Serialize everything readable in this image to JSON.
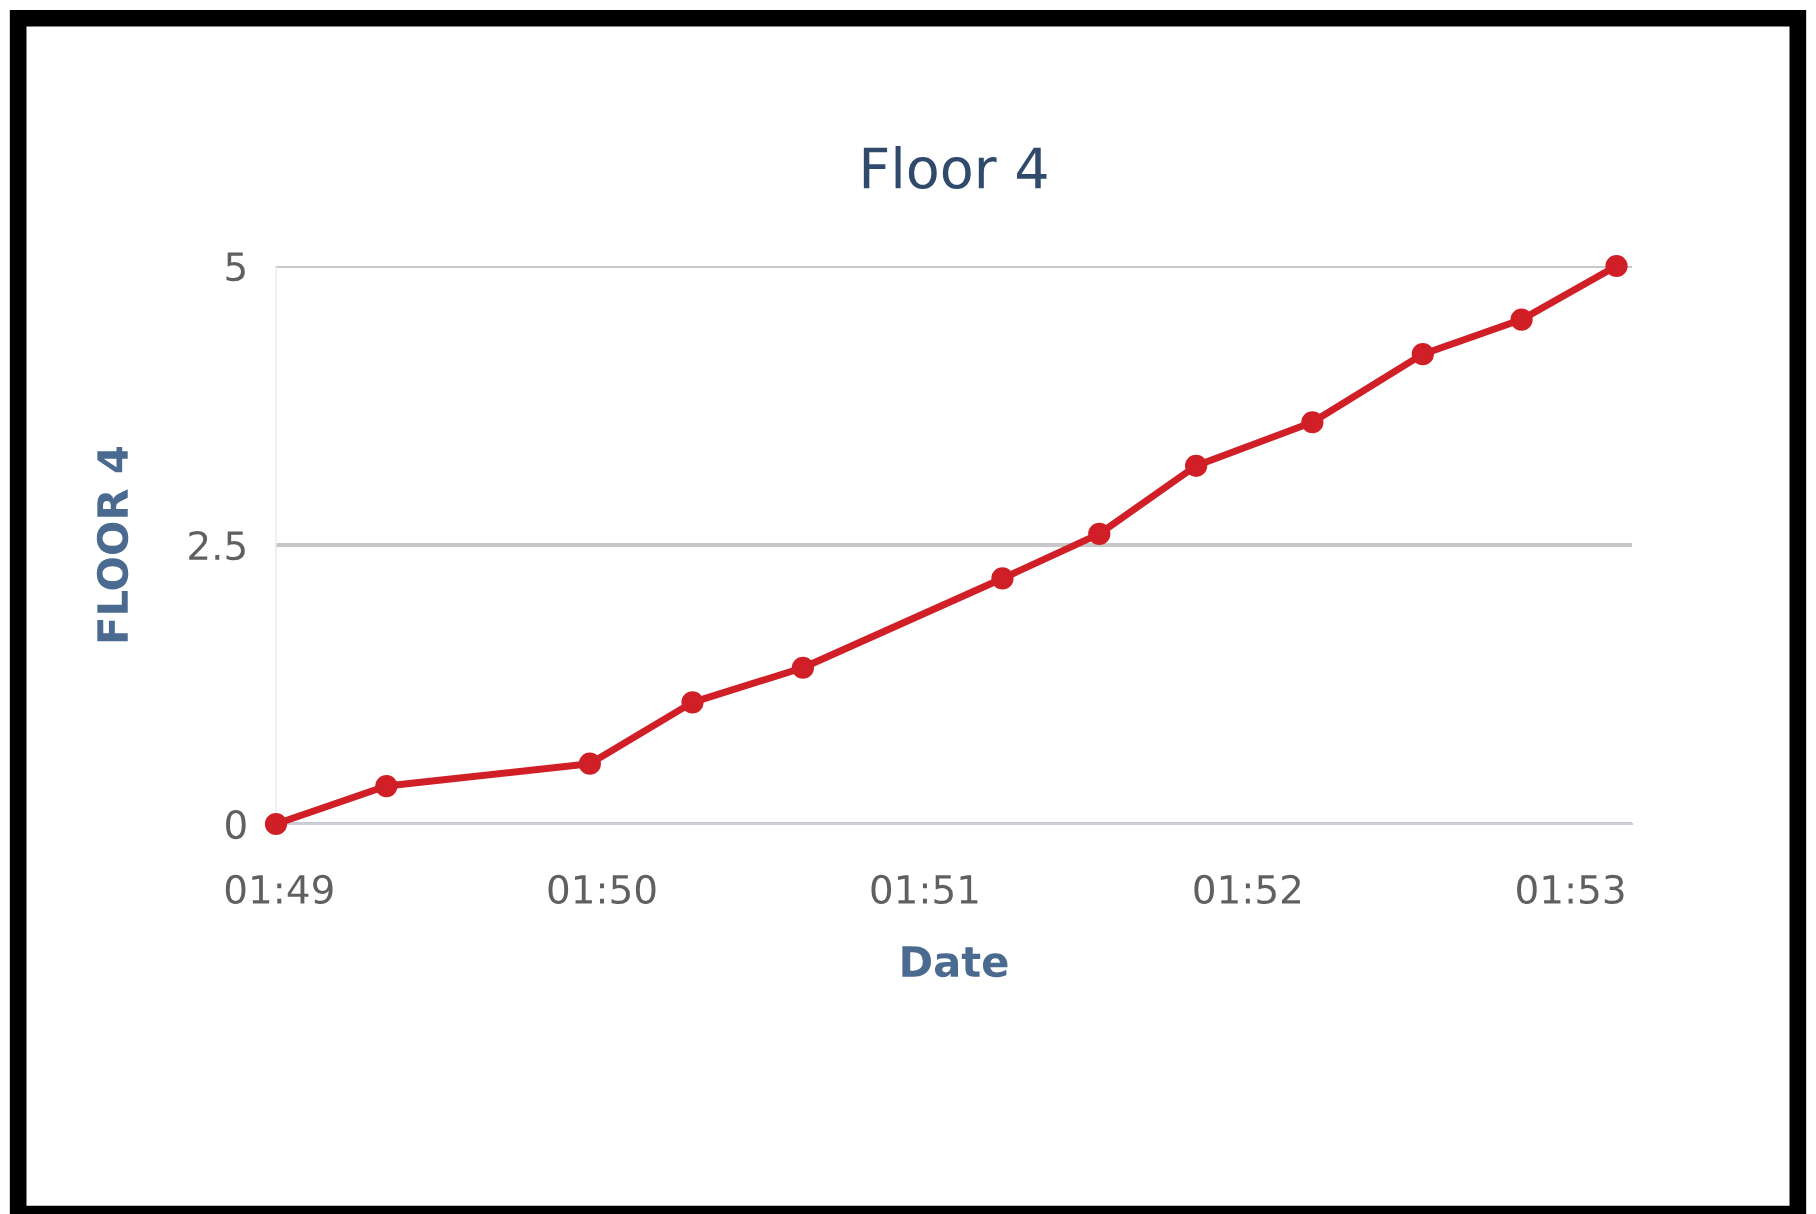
{
  "chart_data": {
    "type": "line",
    "title": "Floor 4",
    "xlabel": "Date",
    "ylabel": "FLOOR 4",
    "series": [
      {
        "color": "#d01f26",
        "x": [
          1.8165,
          1.8222,
          1.8327,
          1.838,
          1.8437,
          1.854,
          1.859,
          1.864,
          1.87,
          1.8757,
          1.8808,
          1.8857
        ],
        "values": [
          0,
          0.34,
          0.54,
          1.09,
          1.4,
          2.2,
          2.6,
          3.21,
          3.6,
          4.21,
          4.52,
          5
        ]
      }
    ],
    "xlim": [
      1.8165,
      1.8865
    ],
    "xticks": [
      {
        "value": 1.81667,
        "label": "01:49"
      },
      {
        "value": 1.83333,
        "label": "01:50"
      },
      {
        "value": 1.85,
        "label": "01:51"
      },
      {
        "value": 1.86667,
        "label": "01:52"
      },
      {
        "value": 1.88333,
        "label": "01:53"
      }
    ],
    "ylim": [
      0,
      5
    ],
    "yticks": [
      0,
      2.5,
      5
    ],
    "grid": "y",
    "marker": "circle",
    "line_style": "solid",
    "legend": false
  }
}
